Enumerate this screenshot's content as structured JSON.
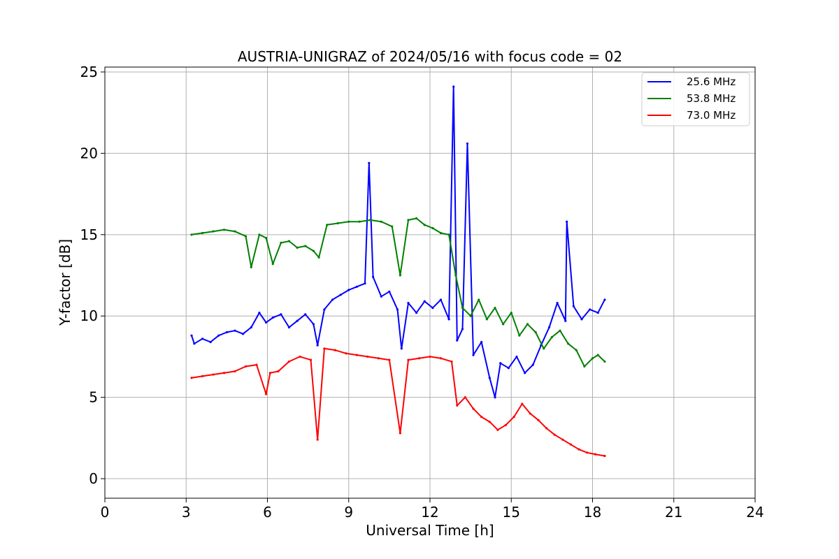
{
  "chart_data": {
    "type": "line",
    "title": "AUSTRIA-UNIGRAZ of 2024/05/16 with focus code = 02",
    "xlabel": "Universal Time [h]",
    "ylabel": "Y-factor [dB]",
    "xlim": [
      0,
      24
    ],
    "ylim": [
      -1.2,
      25.3
    ],
    "xticks": [
      0,
      3,
      6,
      9,
      12,
      15,
      18,
      21,
      24
    ],
    "yticks": [
      0,
      5,
      10,
      15,
      20,
      25
    ],
    "grid": true,
    "legend_position": "top-right",
    "series": [
      {
        "name": "25.6 MHz",
        "color": "#0000ff",
        "x": [
          3.2,
          3.3,
          3.6,
          3.9,
          4.2,
          4.5,
          4.8,
          5.1,
          5.4,
          5.7,
          5.95,
          6.2,
          6.5,
          6.8,
          7.1,
          7.4,
          7.7,
          7.85,
          8.1,
          8.4,
          8.7,
          9.0,
          9.3,
          9.6,
          9.75,
          9.9,
          10.2,
          10.5,
          10.8,
          10.95,
          11.2,
          11.5,
          11.8,
          12.1,
          12.4,
          12.7,
          12.87,
          13.0,
          13.2,
          13.38,
          13.6,
          13.9,
          14.2,
          14.4,
          14.6,
          14.9,
          15.2,
          15.5,
          15.8,
          16.1,
          16.4,
          16.7,
          17.0,
          17.05,
          17.3,
          17.6,
          17.9,
          18.2,
          18.45
        ],
        "values": [
          8.8,
          8.3,
          8.6,
          8.4,
          8.8,
          9.0,
          9.1,
          8.9,
          9.3,
          10.2,
          9.6,
          9.9,
          10.1,
          9.3,
          9.7,
          10.1,
          9.5,
          8.2,
          10.4,
          11.0,
          11.3,
          11.6,
          11.8,
          12.0,
          19.4,
          12.4,
          11.2,
          11.5,
          10.4,
          8.0,
          10.8,
          10.2,
          10.9,
          10.5,
          11.0,
          9.8,
          24.1,
          8.5,
          9.2,
          20.6,
          7.6,
          8.4,
          6.2,
          5.0,
          7.1,
          6.8,
          7.5,
          6.5,
          7.0,
          8.2,
          9.3,
          10.8,
          9.7,
          15.8,
          10.6,
          9.8,
          10.4,
          10.2,
          11.0
        ]
      },
      {
        "name": "53.8 MHz",
        "color": "#008000",
        "x": [
          3.2,
          3.6,
          4.0,
          4.4,
          4.8,
          5.2,
          5.4,
          5.7,
          5.95,
          6.2,
          6.5,
          6.8,
          7.1,
          7.4,
          7.7,
          7.9,
          8.2,
          8.6,
          9.0,
          9.4,
          9.8,
          10.2,
          10.6,
          10.9,
          11.2,
          11.5,
          11.8,
          12.1,
          12.4,
          12.7,
          12.95,
          13.2,
          13.5,
          13.8,
          14.1,
          14.4,
          14.7,
          15.0,
          15.3,
          15.6,
          15.9,
          16.2,
          16.5,
          16.8,
          17.1,
          17.4,
          17.7,
          18.0,
          18.2,
          18.45
        ],
        "values": [
          15.0,
          15.1,
          15.2,
          15.3,
          15.2,
          14.9,
          13.0,
          15.0,
          14.8,
          13.2,
          14.5,
          14.6,
          14.2,
          14.3,
          14.0,
          13.6,
          15.6,
          15.7,
          15.8,
          15.8,
          15.9,
          15.8,
          15.5,
          12.5,
          15.9,
          16.0,
          15.6,
          15.4,
          15.1,
          15.0,
          12.5,
          10.5,
          10.0,
          11.0,
          9.8,
          10.5,
          9.5,
          10.2,
          8.8,
          9.5,
          9.0,
          8.0,
          8.7,
          9.1,
          8.3,
          7.9,
          6.9,
          7.4,
          7.6,
          7.2
        ]
      },
      {
        "name": "73.0 MHz",
        "color": "#ff0000",
        "x": [
          3.2,
          3.6,
          4.0,
          4.4,
          4.8,
          5.2,
          5.6,
          5.95,
          6.1,
          6.4,
          6.8,
          7.2,
          7.6,
          7.85,
          8.1,
          8.5,
          8.9,
          9.3,
          9.7,
          10.1,
          10.5,
          10.9,
          11.2,
          11.6,
          12.0,
          12.4,
          12.8,
          13.0,
          13.3,
          13.6,
          13.9,
          14.2,
          14.5,
          14.8,
          15.1,
          15.4,
          15.7,
          16.0,
          16.3,
          16.6,
          16.9,
          17.2,
          17.5,
          17.8,
          18.1,
          18.45
        ],
        "values": [
          6.2,
          6.3,
          6.4,
          6.5,
          6.6,
          6.9,
          7.0,
          5.2,
          6.5,
          6.6,
          7.2,
          7.5,
          7.3,
          2.4,
          8.0,
          7.9,
          7.7,
          7.6,
          7.5,
          7.4,
          7.3,
          2.8,
          7.3,
          7.4,
          7.5,
          7.4,
          7.2,
          4.5,
          5.0,
          4.3,
          3.8,
          3.5,
          3.0,
          3.3,
          3.8,
          4.6,
          4.0,
          3.6,
          3.1,
          2.7,
          2.4,
          2.1,
          1.8,
          1.6,
          1.5,
          1.4
        ]
      }
    ]
  }
}
